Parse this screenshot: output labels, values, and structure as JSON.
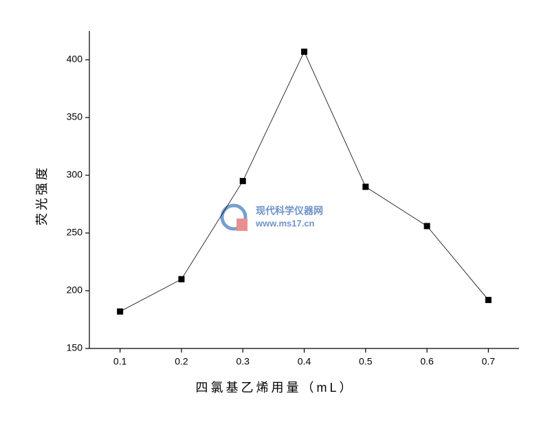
{
  "chart_data": {
    "type": "line",
    "x_label": "四氯基乙烯用量（mL）",
    "y_label": "荧光强度",
    "x": [
      0.1,
      0.2,
      0.3,
      0.4,
      0.5,
      0.6,
      0.7
    ],
    "series": [
      {
        "color": "#000000",
        "values": [
          182,
          210,
          295,
          407,
          290,
          256,
          192
        ]
      }
    ],
    "xlim": [
      0.05,
      0.75
    ],
    "xticks": [
      0.1,
      0.2,
      0.3,
      0.4,
      0.5,
      0.6,
      0.7
    ],
    "ylim": [
      150,
      425
    ],
    "yticks": [
      150,
      200,
      250,
      300,
      350,
      400
    ],
    "watermark": {
      "title": "现代科学仪器网",
      "url": "www.ms17.cn"
    }
  }
}
